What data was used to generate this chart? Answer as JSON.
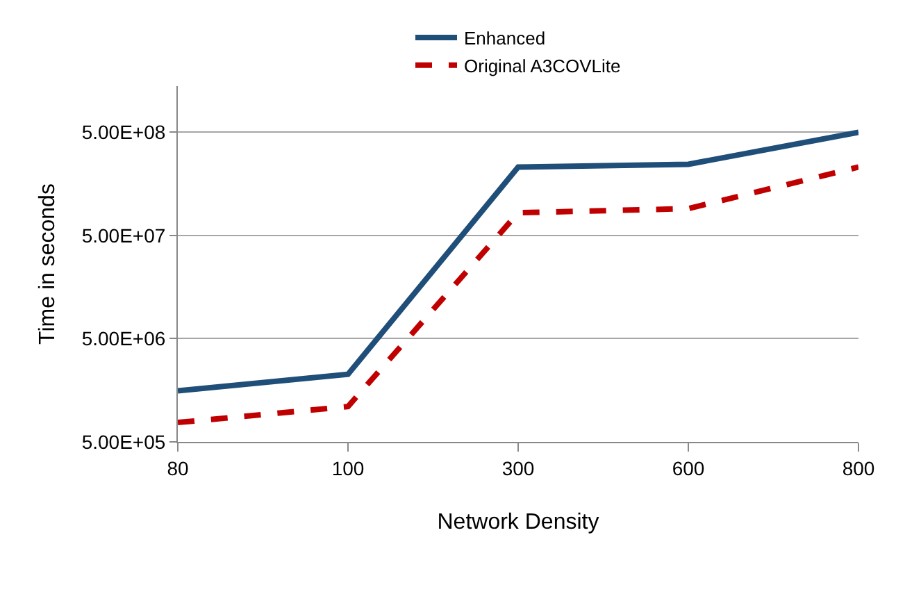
{
  "chart_data": {
    "type": "line",
    "xlabel": "Network Density",
    "ylabel": "Time in seconds",
    "categories": [
      "80",
      "100",
      "300",
      "600",
      "800"
    ],
    "series": [
      {
        "name": "Enhanced",
        "color": "#1f4e79",
        "line_style": "solid",
        "values": [
          1560000,
          2260000,
          230000000,
          245000000,
          500000000
        ]
      },
      {
        "name": "Original A3COVLite",
        "color": "#c00000",
        "line_style": "dashed",
        "values": [
          770000,
          1100000,
          83000000,
          91000000,
          230000000
        ]
      }
    ],
    "log": true,
    "ylim": [
      500000,
      1400000000
    ],
    "yticks": [
      {
        "value": 500000,
        "label": "5.00E+05"
      },
      {
        "value": 5000000,
        "label": "5.00E+06"
      },
      {
        "value": 50000000,
        "label": "5.00E+07"
      },
      {
        "value": 500000000,
        "label": "5.00E+08"
      }
    ],
    "grid": "y",
    "legend": "top",
    "marker": "none"
  }
}
